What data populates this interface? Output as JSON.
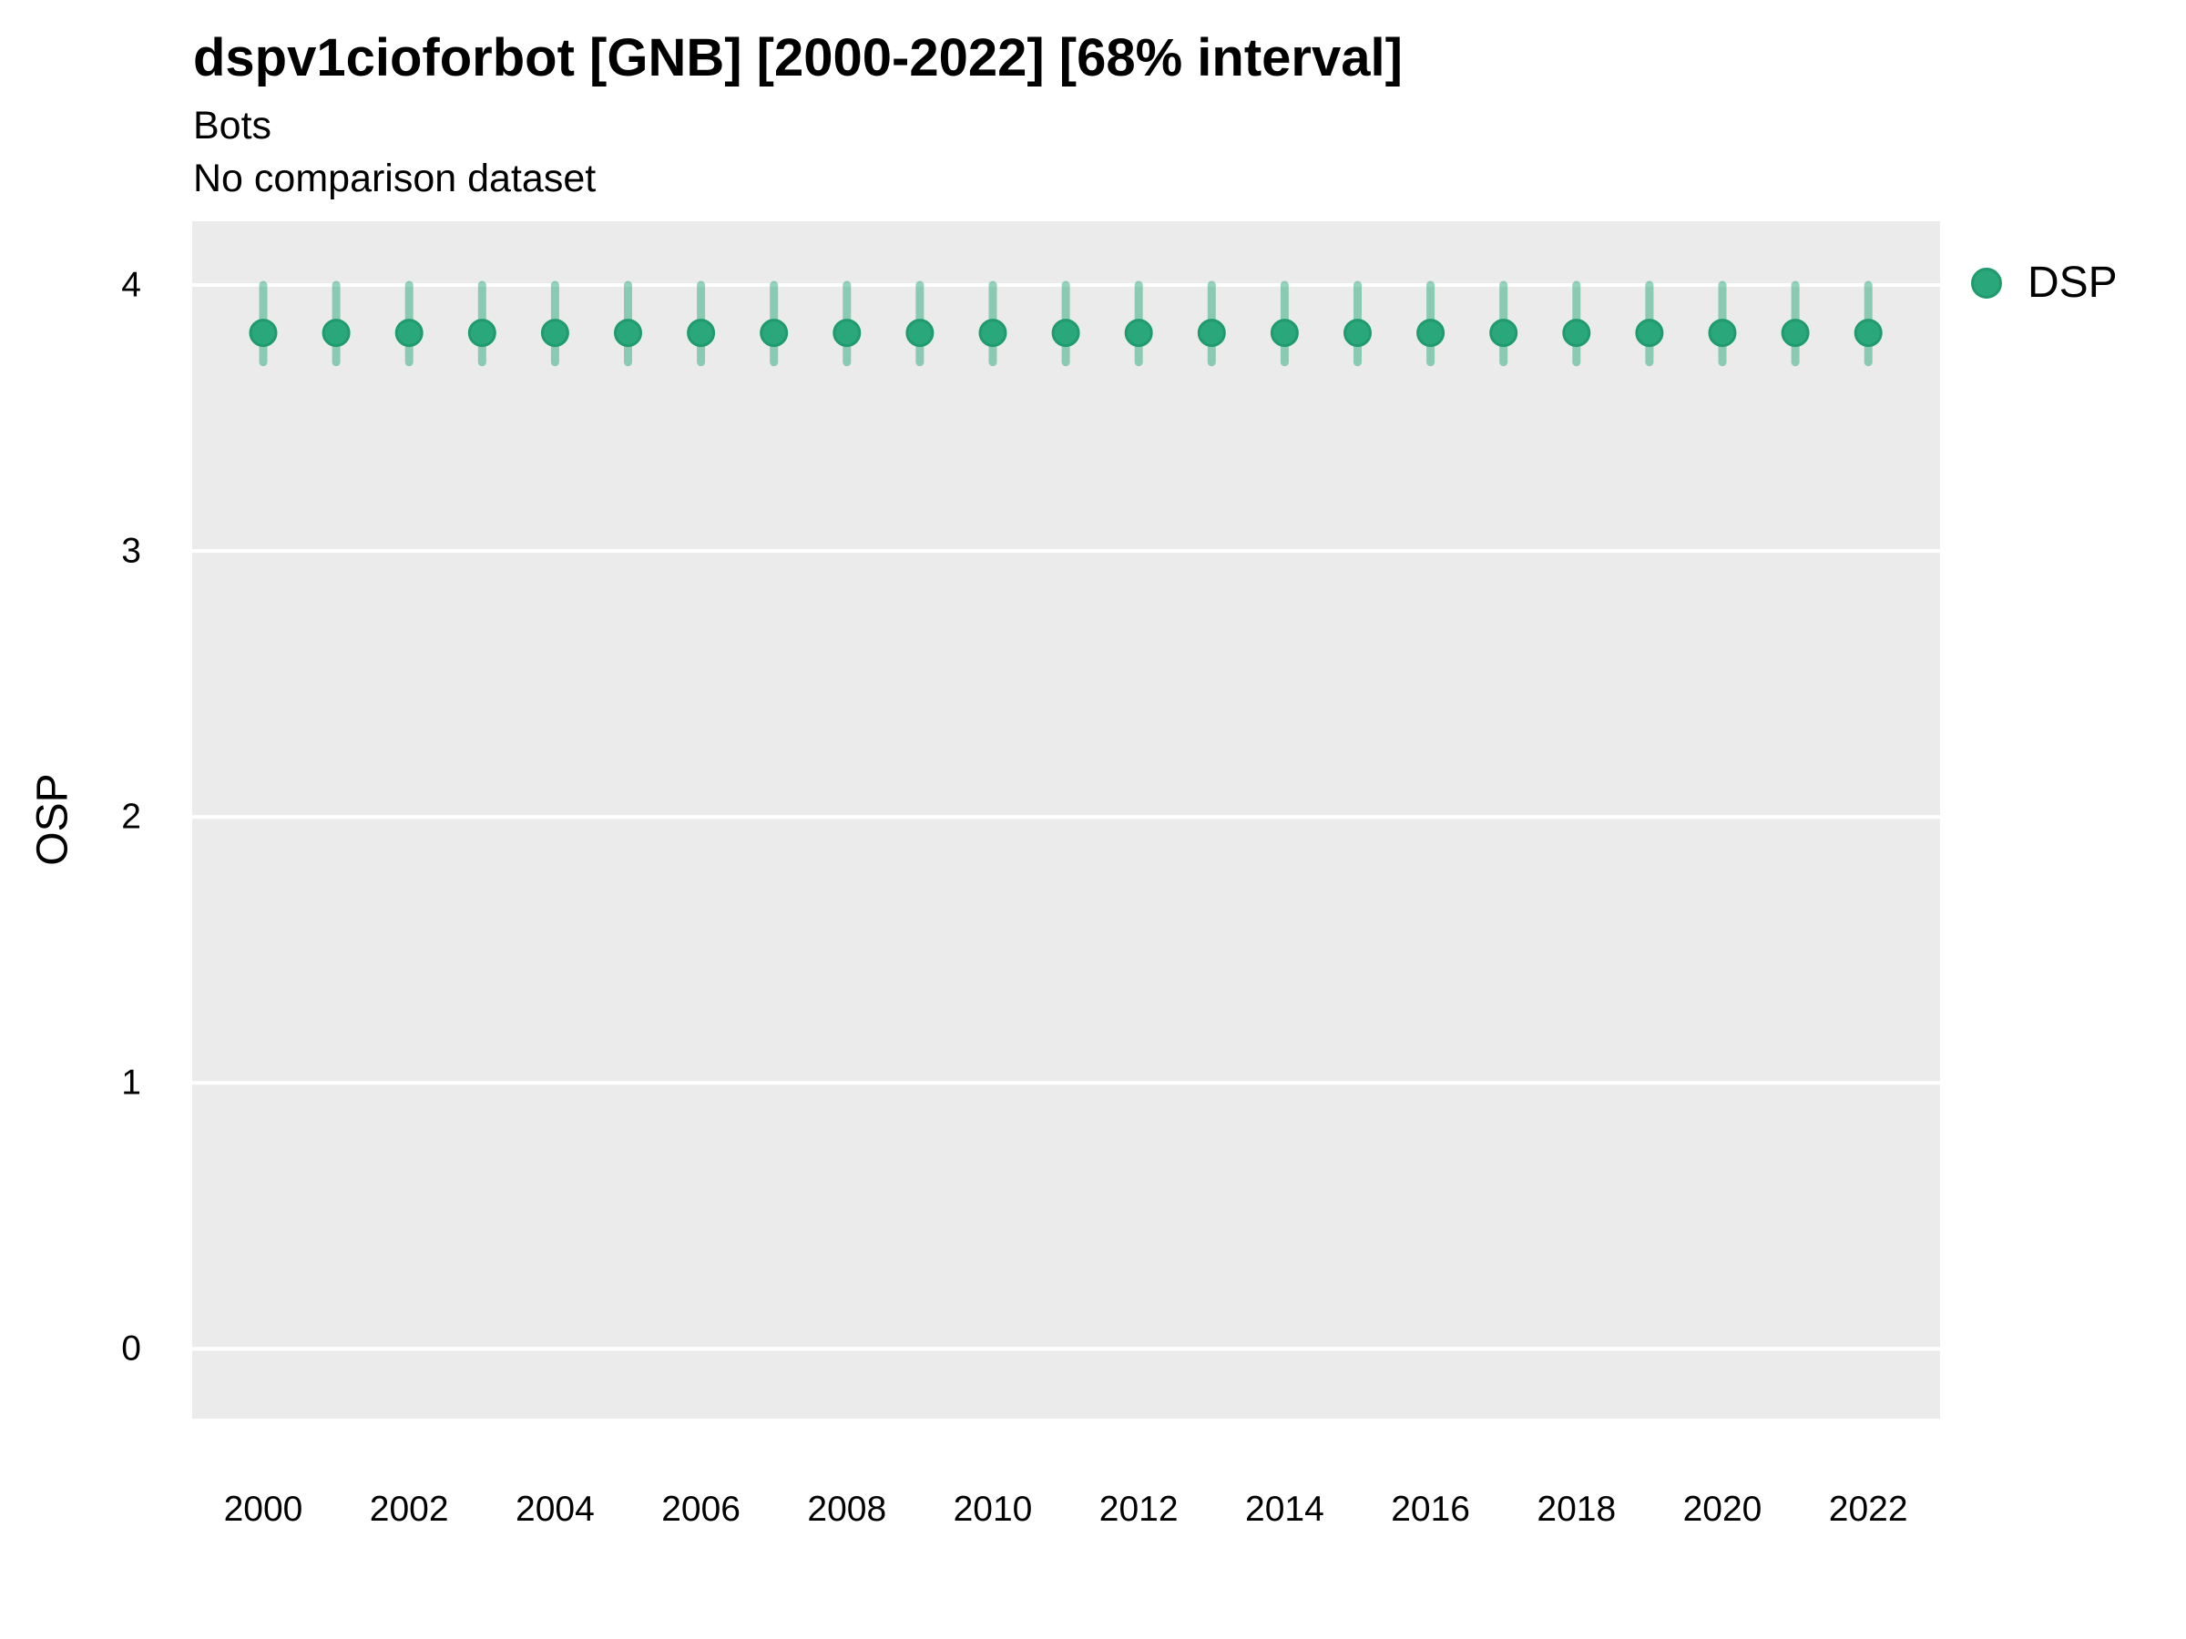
{
  "header": {
    "title": "dspv1cioforbot [GNB] [2000-2022] [68% interval]",
    "subtitle": "Bots",
    "note": "No comparison dataset"
  },
  "axes": {
    "y_label": "OSP",
    "y_ticks": [
      "0",
      "1",
      "2",
      "3",
      "4"
    ],
    "x_ticks": [
      "2000",
      "2002",
      "2004",
      "2006",
      "2008",
      "2010",
      "2012",
      "2014",
      "2016",
      "2018",
      "2020",
      "2022"
    ]
  },
  "legend": {
    "items": [
      {
        "label": "DSP"
      }
    ]
  },
  "colors": {
    "panel_bg": "#ebebeb",
    "grid": "#ffffff",
    "marker_fill": "#2aa87c",
    "marker_stroke": "#1f9b6e",
    "interval": "#2aa87a"
  },
  "chart_data": {
    "type": "scatter",
    "title": "dspv1cioforbot [GNB] [2000-2022] [68% interval]",
    "subtitle": "Bots",
    "note": "No comparison dataset",
    "xlabel": "",
    "ylabel": "OSP",
    "xlim": [
      1999,
      2023
    ],
    "ylim": [
      -0.26,
      4.24
    ],
    "y_tick_values": [
      0,
      1,
      2,
      3,
      4
    ],
    "x_tick_values": [
      2000,
      2002,
      2004,
      2006,
      2008,
      2010,
      2012,
      2014,
      2016,
      2018,
      2020,
      2022
    ],
    "grid": "major-horizontal-only",
    "legend_position": "right",
    "interval_level": "68%",
    "series": [
      {
        "name": "DSP",
        "marker": "circle",
        "points": [
          {
            "x": 2000,
            "y": 3.82,
            "lo": 3.71,
            "hi": 4.0
          },
          {
            "x": 2001,
            "y": 3.82,
            "lo": 3.71,
            "hi": 4.0
          },
          {
            "x": 2002,
            "y": 3.82,
            "lo": 3.71,
            "hi": 4.0
          },
          {
            "x": 2003,
            "y": 3.82,
            "lo": 3.71,
            "hi": 4.0
          },
          {
            "x": 2004,
            "y": 3.82,
            "lo": 3.71,
            "hi": 4.0
          },
          {
            "x": 2005,
            "y": 3.82,
            "lo": 3.71,
            "hi": 4.0
          },
          {
            "x": 2006,
            "y": 3.82,
            "lo": 3.71,
            "hi": 4.0
          },
          {
            "x": 2007,
            "y": 3.82,
            "lo": 3.71,
            "hi": 4.0
          },
          {
            "x": 2008,
            "y": 3.82,
            "lo": 3.71,
            "hi": 4.0
          },
          {
            "x": 2009,
            "y": 3.82,
            "lo": 3.71,
            "hi": 4.0
          },
          {
            "x": 2010,
            "y": 3.82,
            "lo": 3.71,
            "hi": 4.0
          },
          {
            "x": 2011,
            "y": 3.82,
            "lo": 3.71,
            "hi": 4.0
          },
          {
            "x": 2012,
            "y": 3.82,
            "lo": 3.71,
            "hi": 4.0
          },
          {
            "x": 2013,
            "y": 3.82,
            "lo": 3.71,
            "hi": 4.0
          },
          {
            "x": 2014,
            "y": 3.82,
            "lo": 3.71,
            "hi": 4.0
          },
          {
            "x": 2015,
            "y": 3.82,
            "lo": 3.71,
            "hi": 4.0
          },
          {
            "x": 2016,
            "y": 3.82,
            "lo": 3.71,
            "hi": 4.0
          },
          {
            "x": 2017,
            "y": 3.82,
            "lo": 3.71,
            "hi": 4.0
          },
          {
            "x": 2018,
            "y": 3.82,
            "lo": 3.71,
            "hi": 4.0
          },
          {
            "x": 2019,
            "y": 3.82,
            "lo": 3.71,
            "hi": 4.0
          },
          {
            "x": 2020,
            "y": 3.82,
            "lo": 3.71,
            "hi": 4.0
          },
          {
            "x": 2021,
            "y": 3.82,
            "lo": 3.71,
            "hi": 4.0
          },
          {
            "x": 2022,
            "y": 3.82,
            "lo": 3.71,
            "hi": 4.0
          }
        ]
      }
    ]
  }
}
